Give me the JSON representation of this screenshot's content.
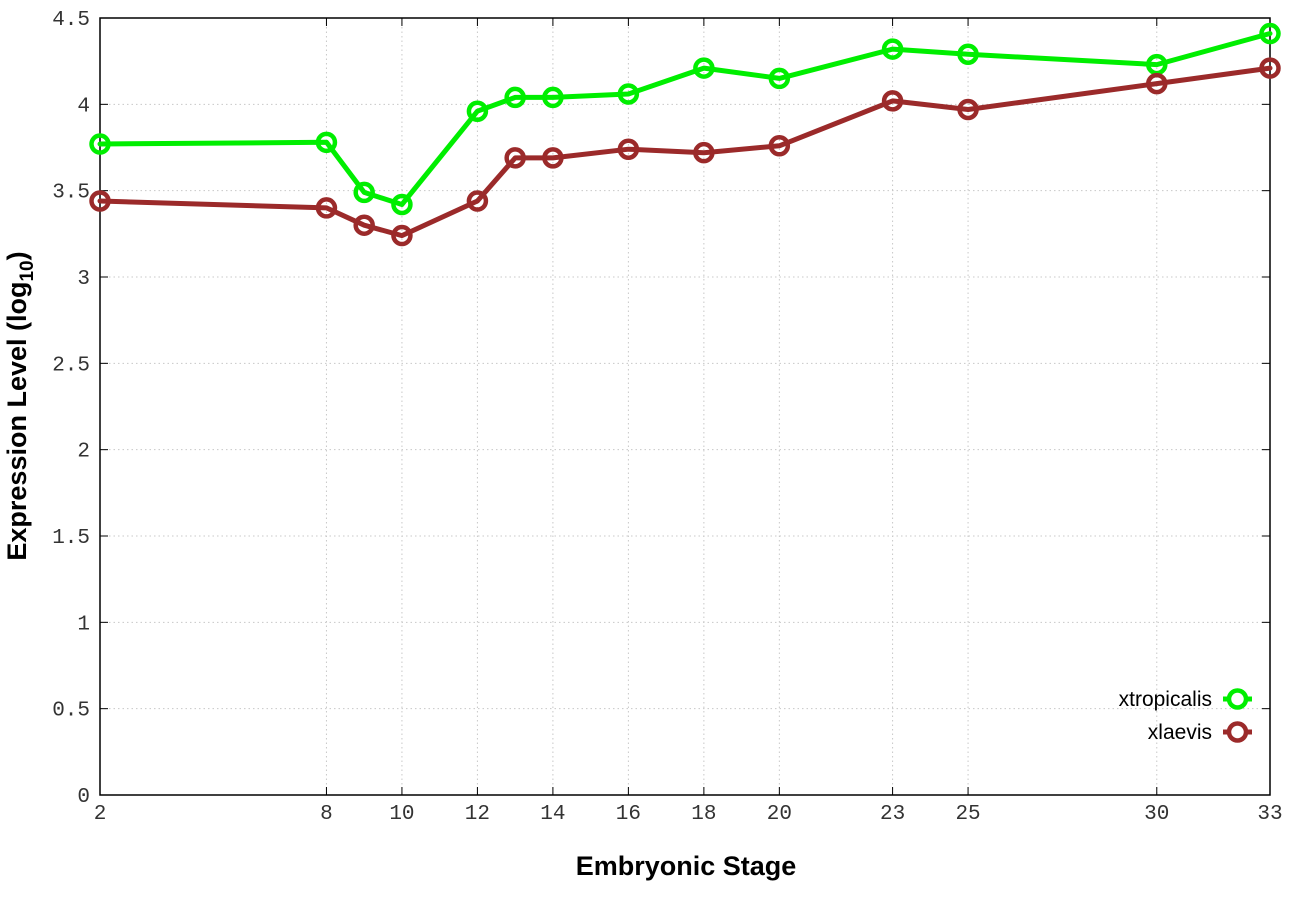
{
  "chart_data": {
    "type": "line",
    "title": "",
    "xlabel": "Embryonic Stage",
    "ylabel_main": "Expression Level (log",
    "ylabel_sub": "10",
    "ylabel_close": ")",
    "x": [
      2,
      8,
      9,
      10,
      12,
      13,
      14,
      16,
      18,
      20,
      23,
      25,
      30,
      33
    ],
    "x_ticks": [
      2,
      8,
      10,
      12,
      14,
      16,
      18,
      20,
      23,
      25,
      30,
      33
    ],
    "x_tick_labels": [
      "2",
      "8",
      "10",
      "12",
      "14",
      "16",
      "18",
      "20",
      "23",
      "25",
      "30",
      "33"
    ],
    "xlim": [
      2,
      33
    ],
    "ylim": [
      0,
      4.5
    ],
    "y_ticks": [
      0,
      0.5,
      1,
      1.5,
      2,
      2.5,
      3,
      3.5,
      4,
      4.5
    ],
    "y_tick_labels": [
      "0",
      "0.5",
      "1",
      "1.5",
      "2",
      "2.5",
      "3",
      "3.5",
      "4",
      "4.5"
    ],
    "grid": true,
    "legend_position": "bottom-right",
    "series": [
      {
        "name": "xtropicalis",
        "color": "#00ee00",
        "values": [
          3.77,
          3.78,
          3.49,
          3.42,
          3.96,
          4.04,
          4.04,
          4.06,
          4.21,
          4.15,
          4.32,
          4.29,
          4.23,
          4.41
        ]
      },
      {
        "name": "xlaevis",
        "color": "#9b2a2a",
        "values": [
          3.44,
          3.4,
          3.3,
          3.24,
          3.44,
          3.69,
          3.69,
          3.74,
          3.72,
          3.76,
          4.02,
          3.97,
          4.12,
          4.21
        ]
      }
    ]
  }
}
